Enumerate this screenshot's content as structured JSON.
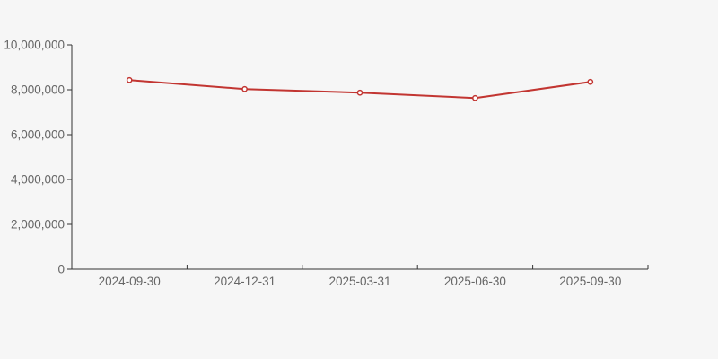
{
  "chart_data": {
    "type": "line",
    "title": "",
    "xlabel": "",
    "ylabel": "",
    "categories": [
      "2024-09-30",
      "2024-12-31",
      "2025-03-31",
      "2025-06-30",
      "2025-09-30"
    ],
    "values": [
      8430000,
      8030000,
      7870000,
      7630000,
      8350000
    ],
    "ylim": [
      0,
      10000000
    ],
    "y_tick_interval": 2000000,
    "y_tick_labels": [
      "0",
      "2,000,000",
      "4,000,000",
      "6,000,000",
      "8,000,000",
      "10,000,000"
    ],
    "grid": false,
    "legend": "none",
    "line_color": "#c23531",
    "marker": "hollow-circle",
    "marker_fill": "#ffffff",
    "axis_color": "#333333",
    "label_color": "#666666",
    "background_color": "#f6f6f6"
  }
}
